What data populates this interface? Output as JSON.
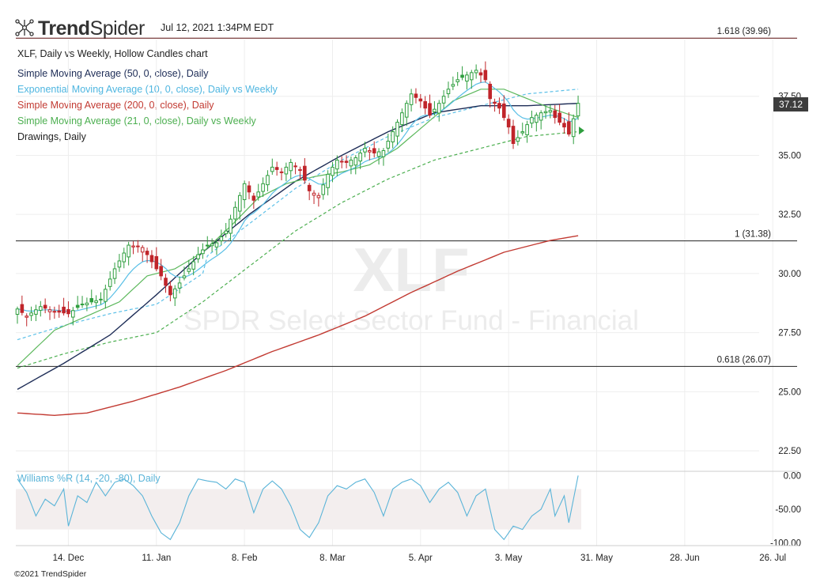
{
  "header": {
    "brand_bold": "Trend",
    "brand_light": "Spider",
    "brand_icon": "spider-network-icon",
    "timestamp": "Jul 12, 2021 1:34PM EDT",
    "copyright": "©2021 TrendSpider"
  },
  "colors": {
    "up": "#2e9e3e",
    "down": "#c0252a",
    "sma50": "#1e2d57",
    "ema10": "#58bfe6",
    "sma200": "#c23a32",
    "sma21": "#5cb85c",
    "fib": "#222222",
    "williams": "#5ab4d8"
  },
  "legend": [
    {
      "text": "XLF, Daily vs Weekly, Hollow Candles chart",
      "color": "#222222"
    },
    {
      "text": "Simple Moving Average (50, 0, close), Daily",
      "color": "#1e2d57"
    },
    {
      "text": "Exponential Moving Average (10, 0, close), Daily vs Weekly",
      "color": "#4fb6e0"
    },
    {
      "text": "Simple Moving Average (200, 0, close), Daily",
      "color": "#c23a32"
    },
    {
      "text": "Simple Moving Average (21, 0, close), Daily vs Weekly",
      "color": "#4caf50"
    },
    {
      "text": "Drawings, Daily",
      "color": "#222222"
    }
  ],
  "watermark": {
    "symbol": "XLF",
    "name": "SPDR Select Sector Fund - Financial"
  },
  "last_price": "37.12",
  "chart_data": {
    "type": "candlestick",
    "x_ticks": [
      "14. Dec",
      "11. Jan",
      "8. Feb",
      "8. Mar",
      "5. Apr",
      "3. May",
      "31. May",
      "28. Jun",
      "26. Jul"
    ],
    "x_tick_index": [
      11,
      30,
      49,
      68,
      87,
      106,
      125,
      144,
      163
    ],
    "y_ticks": [
      "22.50",
      "25.00",
      "27.50",
      "30.00",
      "32.50",
      "35.00",
      "37.50"
    ],
    "ylim": [
      21.7,
      39.9
    ],
    "fib_levels": [
      {
        "label": "1.618 (39.96)",
        "value": 39.96
      },
      {
        "label": "1 (31.38)",
        "value": 31.38
      },
      {
        "label": "0.618 (26.07)",
        "value": 26.07
      }
    ],
    "close_anchors": [
      [
        0,
        28.5
      ],
      [
        2,
        28.2
      ],
      [
        5,
        28.6
      ],
      [
        8,
        28.4
      ],
      [
        11,
        28.3
      ],
      [
        14,
        28.7
      ],
      [
        18,
        28.9
      ],
      [
        21,
        30.2
      ],
      [
        24,
        31.2
      ],
      [
        27,
        31.1
      ],
      [
        29,
        30.5
      ],
      [
        31,
        29.9
      ],
      [
        33,
        29.1
      ],
      [
        35,
        29.6
      ],
      [
        37,
        30.2
      ],
      [
        39,
        30.8
      ],
      [
        41,
        31.2
      ],
      [
        43,
        31.3
      ],
      [
        45,
        31.8
      ],
      [
        47,
        32.8
      ],
      [
        49,
        33.8
      ],
      [
        51,
        33.1
      ],
      [
        53,
        33.8
      ],
      [
        55,
        34.5
      ],
      [
        57,
        34.3
      ],
      [
        59,
        34.7
      ],
      [
        61,
        34.4
      ],
      [
        63,
        33.5
      ],
      [
        65,
        33.3
      ],
      [
        67,
        34.2
      ],
      [
        69,
        34.8
      ],
      [
        71,
        34.7
      ],
      [
        73,
        34.9
      ],
      [
        75,
        35.3
      ],
      [
        77,
        35.1
      ],
      [
        79,
        35.2
      ],
      [
        81,
        36.0
      ],
      [
        83,
        36.8
      ],
      [
        85,
        37.6
      ],
      [
        87,
        37.3
      ],
      [
        89,
        36.7
      ],
      [
        91,
        37.2
      ],
      [
        93,
        37.8
      ],
      [
        95,
        38.2
      ],
      [
        97,
        38.4
      ],
      [
        99,
        38.6
      ],
      [
        101,
        38.2
      ],
      [
        102,
        37.4
      ],
      [
        104,
        37.0
      ],
      [
        106,
        36.2
      ],
      [
        107,
        35.5
      ],
      [
        109,
        36.0
      ],
      [
        111,
        36.6
      ],
      [
        113,
        36.8
      ],
      [
        115,
        36.9
      ],
      [
        116,
        36.6
      ],
      [
        118,
        36.2
      ],
      [
        119,
        35.9
      ],
      [
        121,
        37.2
      ]
    ],
    "sma50_anchors": [
      [
        0,
        25.1
      ],
      [
        10,
        26.2
      ],
      [
        20,
        27.4
      ],
      [
        30,
        29.1
      ],
      [
        40,
        30.9
      ],
      [
        50,
        32.5
      ],
      [
        60,
        33.9
      ],
      [
        70,
        35.0
      ],
      [
        80,
        36.0
      ],
      [
        90,
        36.8
      ],
      [
        100,
        37.1
      ],
      [
        110,
        37.1
      ],
      [
        121,
        37.2
      ]
    ],
    "sma200_anchors": [
      [
        0,
        24.1
      ],
      [
        8,
        24.0
      ],
      [
        15,
        24.1
      ],
      [
        25,
        24.6
      ],
      [
        35,
        25.2
      ],
      [
        45,
        25.9
      ],
      [
        55,
        26.7
      ],
      [
        65,
        27.4
      ],
      [
        75,
        28.2
      ],
      [
        85,
        29.2
      ],
      [
        95,
        30.1
      ],
      [
        105,
        30.9
      ],
      [
        115,
        31.4
      ],
      [
        121,
        31.6
      ]
    ],
    "sma21_anchors": [
      [
        0,
        26.1
      ],
      [
        8,
        27.6
      ],
      [
        15,
        28.2
      ],
      [
        22,
        28.8
      ],
      [
        28,
        29.9
      ],
      [
        34,
        30.2
      ],
      [
        40,
        30.9
      ],
      [
        46,
        32.0
      ],
      [
        52,
        33.2
      ],
      [
        58,
        33.8
      ],
      [
        64,
        34.1
      ],
      [
        70,
        34.3
      ],
      [
        76,
        34.6
      ],
      [
        82,
        35.3
      ],
      [
        88,
        36.3
      ],
      [
        94,
        37.3
      ],
      [
        100,
        37.8
      ],
      [
        105,
        37.8
      ],
      [
        110,
        37.4
      ],
      [
        115,
        37.0
      ],
      [
        121,
        36.6
      ]
    ],
    "ema_dash_anchors": [
      [
        0,
        26.0
      ],
      [
        10,
        26.6
      ],
      [
        20,
        27.1
      ],
      [
        30,
        27.5
      ],
      [
        40,
        28.8
      ],
      [
        50,
        30.3
      ],
      [
        60,
        31.8
      ],
      [
        70,
        33.0
      ],
      [
        80,
        34.0
      ],
      [
        90,
        34.8
      ],
      [
        100,
        35.3
      ],
      [
        110,
        35.8
      ],
      [
        121,
        36.0
      ]
    ],
    "indicator": {
      "name": "Williams %R (14, -20, -80), Daily",
      "y_ticks": [
        "0.00",
        "-50.00",
        "-100.00"
      ],
      "ylim": [
        -104,
        4
      ],
      "band": [
        -20,
        -80
      ],
      "anchors": [
        [
          0,
          -5
        ],
        [
          2,
          -25
        ],
        [
          4,
          -60
        ],
        [
          6,
          -35
        ],
        [
          8,
          -45
        ],
        [
          10,
          -20
        ],
        [
          11,
          -75
        ],
        [
          13,
          -30
        ],
        [
          15,
          -40
        ],
        [
          17,
          -10
        ],
        [
          19,
          -30
        ],
        [
          21,
          -10
        ],
        [
          23,
          -5
        ],
        [
          25,
          -15
        ],
        [
          27,
          -30
        ],
        [
          29,
          -60
        ],
        [
          31,
          -85
        ],
        [
          33,
          -95
        ],
        [
          35,
          -70
        ],
        [
          37,
          -30
        ],
        [
          39,
          -5
        ],
        [
          41,
          -8
        ],
        [
          43,
          -10
        ],
        [
          45,
          -20
        ],
        [
          47,
          -5
        ],
        [
          49,
          -10
        ],
        [
          51,
          -55
        ],
        [
          53,
          -20
        ],
        [
          55,
          -8
        ],
        [
          57,
          -20
        ],
        [
          59,
          -45
        ],
        [
          61,
          -80
        ],
        [
          63,
          -92
        ],
        [
          65,
          -70
        ],
        [
          67,
          -30
        ],
        [
          69,
          -15
        ],
        [
          71,
          -20
        ],
        [
          73,
          -10
        ],
        [
          75,
          -5
        ],
        [
          77,
          -25
        ],
        [
          79,
          -60
        ],
        [
          81,
          -20
        ],
        [
          83,
          -10
        ],
        [
          85,
          -5
        ],
        [
          87,
          -15
        ],
        [
          89,
          -40
        ],
        [
          91,
          -20
        ],
        [
          93,
          -10
        ],
        [
          95,
          -25
        ],
        [
          97,
          -60
        ],
        [
          99,
          -30
        ],
        [
          101,
          -20
        ],
        [
          103,
          -80
        ],
        [
          105,
          -95
        ],
        [
          107,
          -75
        ],
        [
          109,
          -80
        ],
        [
          111,
          -60
        ],
        [
          113,
          -50
        ],
        [
          115,
          -20
        ],
        [
          116,
          -60
        ],
        [
          118,
          -30
        ],
        [
          119,
          -70
        ],
        [
          121,
          0
        ]
      ]
    }
  }
}
